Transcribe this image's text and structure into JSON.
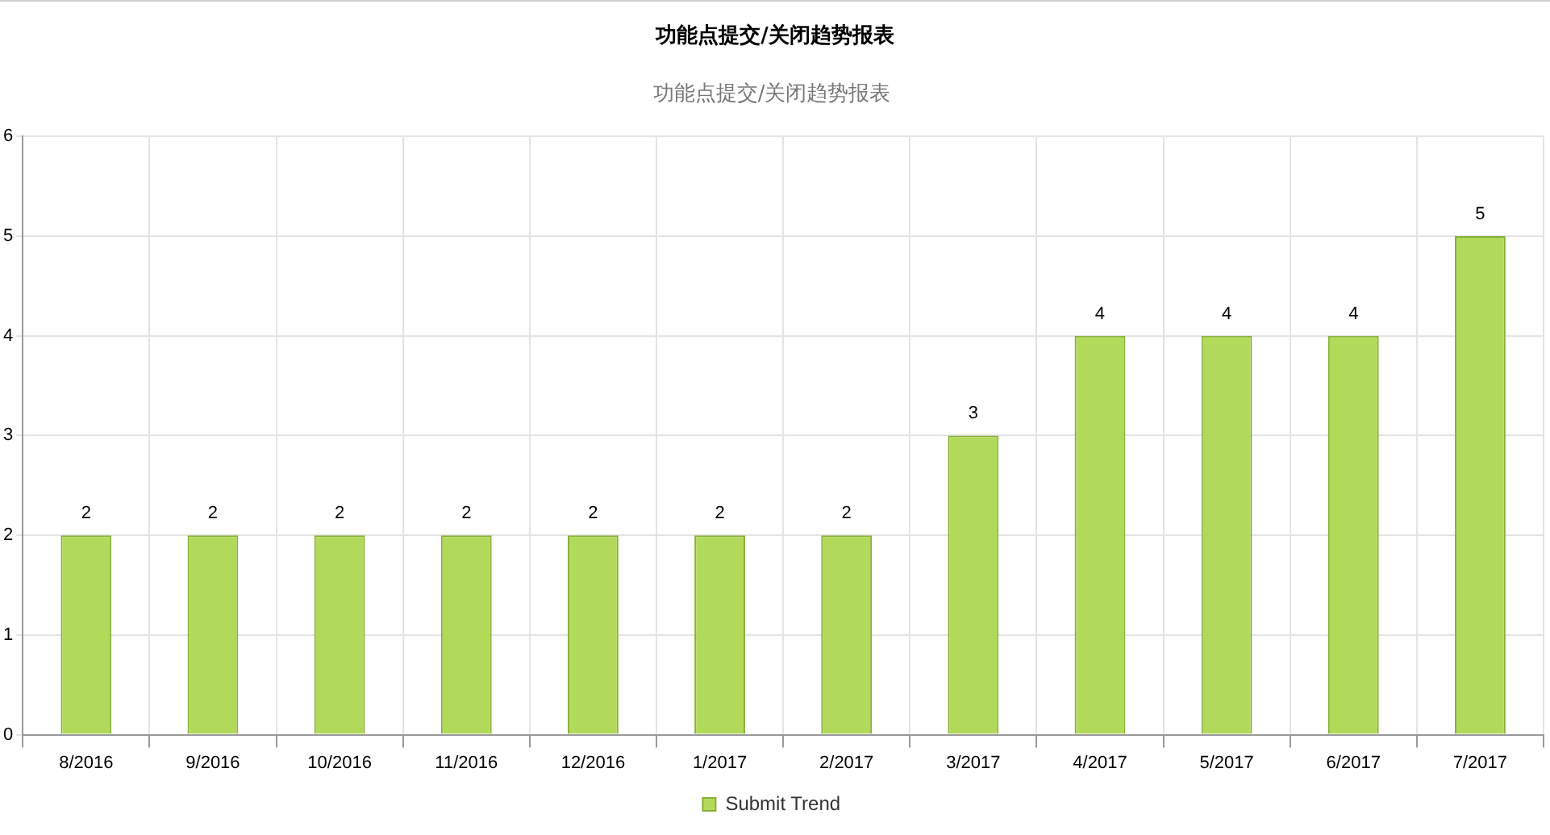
{
  "chart_data": {
    "type": "bar",
    "title": "功能点提交/关闭趋势报表",
    "subtitle": "功能点提交/关闭趋势报表",
    "categories": [
      "8/2016",
      "9/2016",
      "10/2016",
      "11/2016",
      "12/2016",
      "1/2017",
      "2/2017",
      "3/2017",
      "4/2017",
      "5/2017",
      "6/2017",
      "7/2017"
    ],
    "series": [
      {
        "name": "Submit Trend",
        "color": "#b3d95a",
        "values": [
          2,
          2,
          2,
          2,
          2,
          2,
          2,
          3,
          4,
          4,
          4,
          5
        ]
      }
    ],
    "ylim": [
      0,
      6
    ],
    "yticks": [
      0,
      1,
      2,
      3,
      4,
      5,
      6
    ],
    "grid": true,
    "legend": "bottom",
    "data_labels": true
  }
}
